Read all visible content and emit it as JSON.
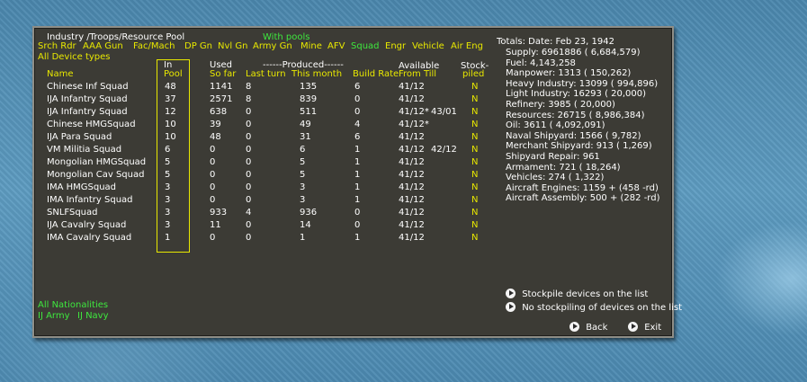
{
  "header": {
    "title": "Industry /Troops/Resource Pool",
    "with_pools": "With pools",
    "filters": [
      "Srch Rdr",
      "AAA Gun",
      "Fac/Mach",
      "DP Gn",
      "Nvl Gn",
      "Army Gn",
      "Mine",
      "AFV",
      "Squad",
      "Engr",
      "Vehicle",
      "Air Eng"
    ],
    "active_filter": "Squad",
    "all_device_types": "All Device types"
  },
  "columns": {
    "name": "Name",
    "in": "In",
    "pool": "Pool",
    "used": "Used",
    "so_far": "So far",
    "produced": "------Produced------",
    "last_turn": "Last turn",
    "this_month": "This month",
    "build_rate": "Build Rate",
    "available": "Available",
    "from_till": "From  Till",
    "stock": "Stock-",
    "piled": "piled"
  },
  "rows": [
    {
      "name": "Chinese Inf Squad",
      "pool": "48",
      "used": "1141",
      "last": "8",
      "month": "135",
      "rate": "6",
      "from": "41/12",
      "till": "",
      "piled": "N"
    },
    {
      "name": "IJA Infantry Squad",
      "pool": "37",
      "used": "2571",
      "last": "8",
      "month": "839",
      "rate": "0",
      "from": "41/12",
      "till": "",
      "piled": "N"
    },
    {
      "name": "IJA Infantry Squad",
      "pool": "12",
      "used": "638",
      "last": "0",
      "month": "511",
      "rate": "0",
      "from": "41/12*",
      "till": "43/01",
      "piled": "N"
    },
    {
      "name": "Chinese HMGSquad",
      "pool": "10",
      "used": "39",
      "last": "0",
      "month": "49",
      "rate": "4",
      "from": "41/12*",
      "till": "",
      "piled": "N"
    },
    {
      "name": "IJA Para Squad",
      "pool": "10",
      "used": "48",
      "last": "0",
      "month": "31",
      "rate": "6",
      "from": "41/12",
      "till": "",
      "piled": "N"
    },
    {
      "name": "VM Militia Squad",
      "pool": "6",
      "used": "0",
      "last": "0",
      "month": "6",
      "rate": "1",
      "from": "41/12",
      "till": "42/12",
      "piled": "N"
    },
    {
      "name": "Mongolian HMGSquad",
      "pool": "5",
      "used": "0",
      "last": "0",
      "month": "5",
      "rate": "1",
      "from": "41/12",
      "till": "",
      "piled": "N"
    },
    {
      "name": "Mongolian Cav Squad",
      "pool": "5",
      "used": "0",
      "last": "0",
      "month": "5",
      "rate": "1",
      "from": "41/12",
      "till": "",
      "piled": "N"
    },
    {
      "name": "IMA HMGSquad",
      "pool": "3",
      "used": "0",
      "last": "0",
      "month": "3",
      "rate": "1",
      "from": "41/12",
      "till": "",
      "piled": "N"
    },
    {
      "name": "IMA Infantry Squad",
      "pool": "3",
      "used": "0",
      "last": "0",
      "month": "3",
      "rate": "1",
      "from": "41/12",
      "till": "",
      "piled": "N"
    },
    {
      "name": "SNLFSquad",
      "pool": "3",
      "used": "933",
      "last": "4",
      "month": "936",
      "rate": "0",
      "from": "41/12",
      "till": "",
      "piled": "N"
    },
    {
      "name": "IJA Cavalry Squad",
      "pool": "3",
      "used": "11",
      "last": "0",
      "month": "14",
      "rate": "0",
      "from": "41/12",
      "till": "",
      "piled": "N"
    },
    {
      "name": "IMA Cavalry Squad",
      "pool": "1",
      "used": "0",
      "last": "0",
      "month": "1",
      "rate": "1",
      "from": "41/12",
      "till": "",
      "piled": "N"
    }
  ],
  "totals": {
    "header": "Totals:  Date: Feb 23, 1942",
    "lines": [
      "Supply: 6961886 ( 6,684,579)",
      "Fuel: 4,143,258",
      "Manpower: 1313 ( 150,262)",
      "Heavy Industry: 13099 ( 994,896)",
      "Light Industry: 16293 ( 20,000)",
      "Refinery: 3985 ( 20,000)",
      "Resources: 26715 ( 8,986,384)",
      "Oil: 3611 ( 4,092,091)",
      "Naval Shipyard: 1566 ( 9,782)",
      "Merchant Shipyard: 913 ( 1,269)",
      "Shipyard Repair: 961",
      "Armament: 721 ( 18,264)",
      "Vehicles: 274 ( 1,322)",
      "Aircraft Engines: 1159 + (458 -rd)",
      "Aircraft Assembly: 500 + (282 -rd)"
    ]
  },
  "footer": {
    "all_nationalities": "All Nationalities",
    "ij_army": "IJ Army",
    "ij_navy": "IJ Navy"
  },
  "actions": {
    "stockpile_on": "Stockpile devices on the list",
    "stockpile_off": "No stockpiling of devices on the list",
    "back": "Back",
    "exit": "Exit"
  },
  "colors": {
    "panel": "#3c3b35",
    "yellow": "#e8e800",
    "green": "#3ee83e",
    "desktop": "#4f8fb6"
  }
}
